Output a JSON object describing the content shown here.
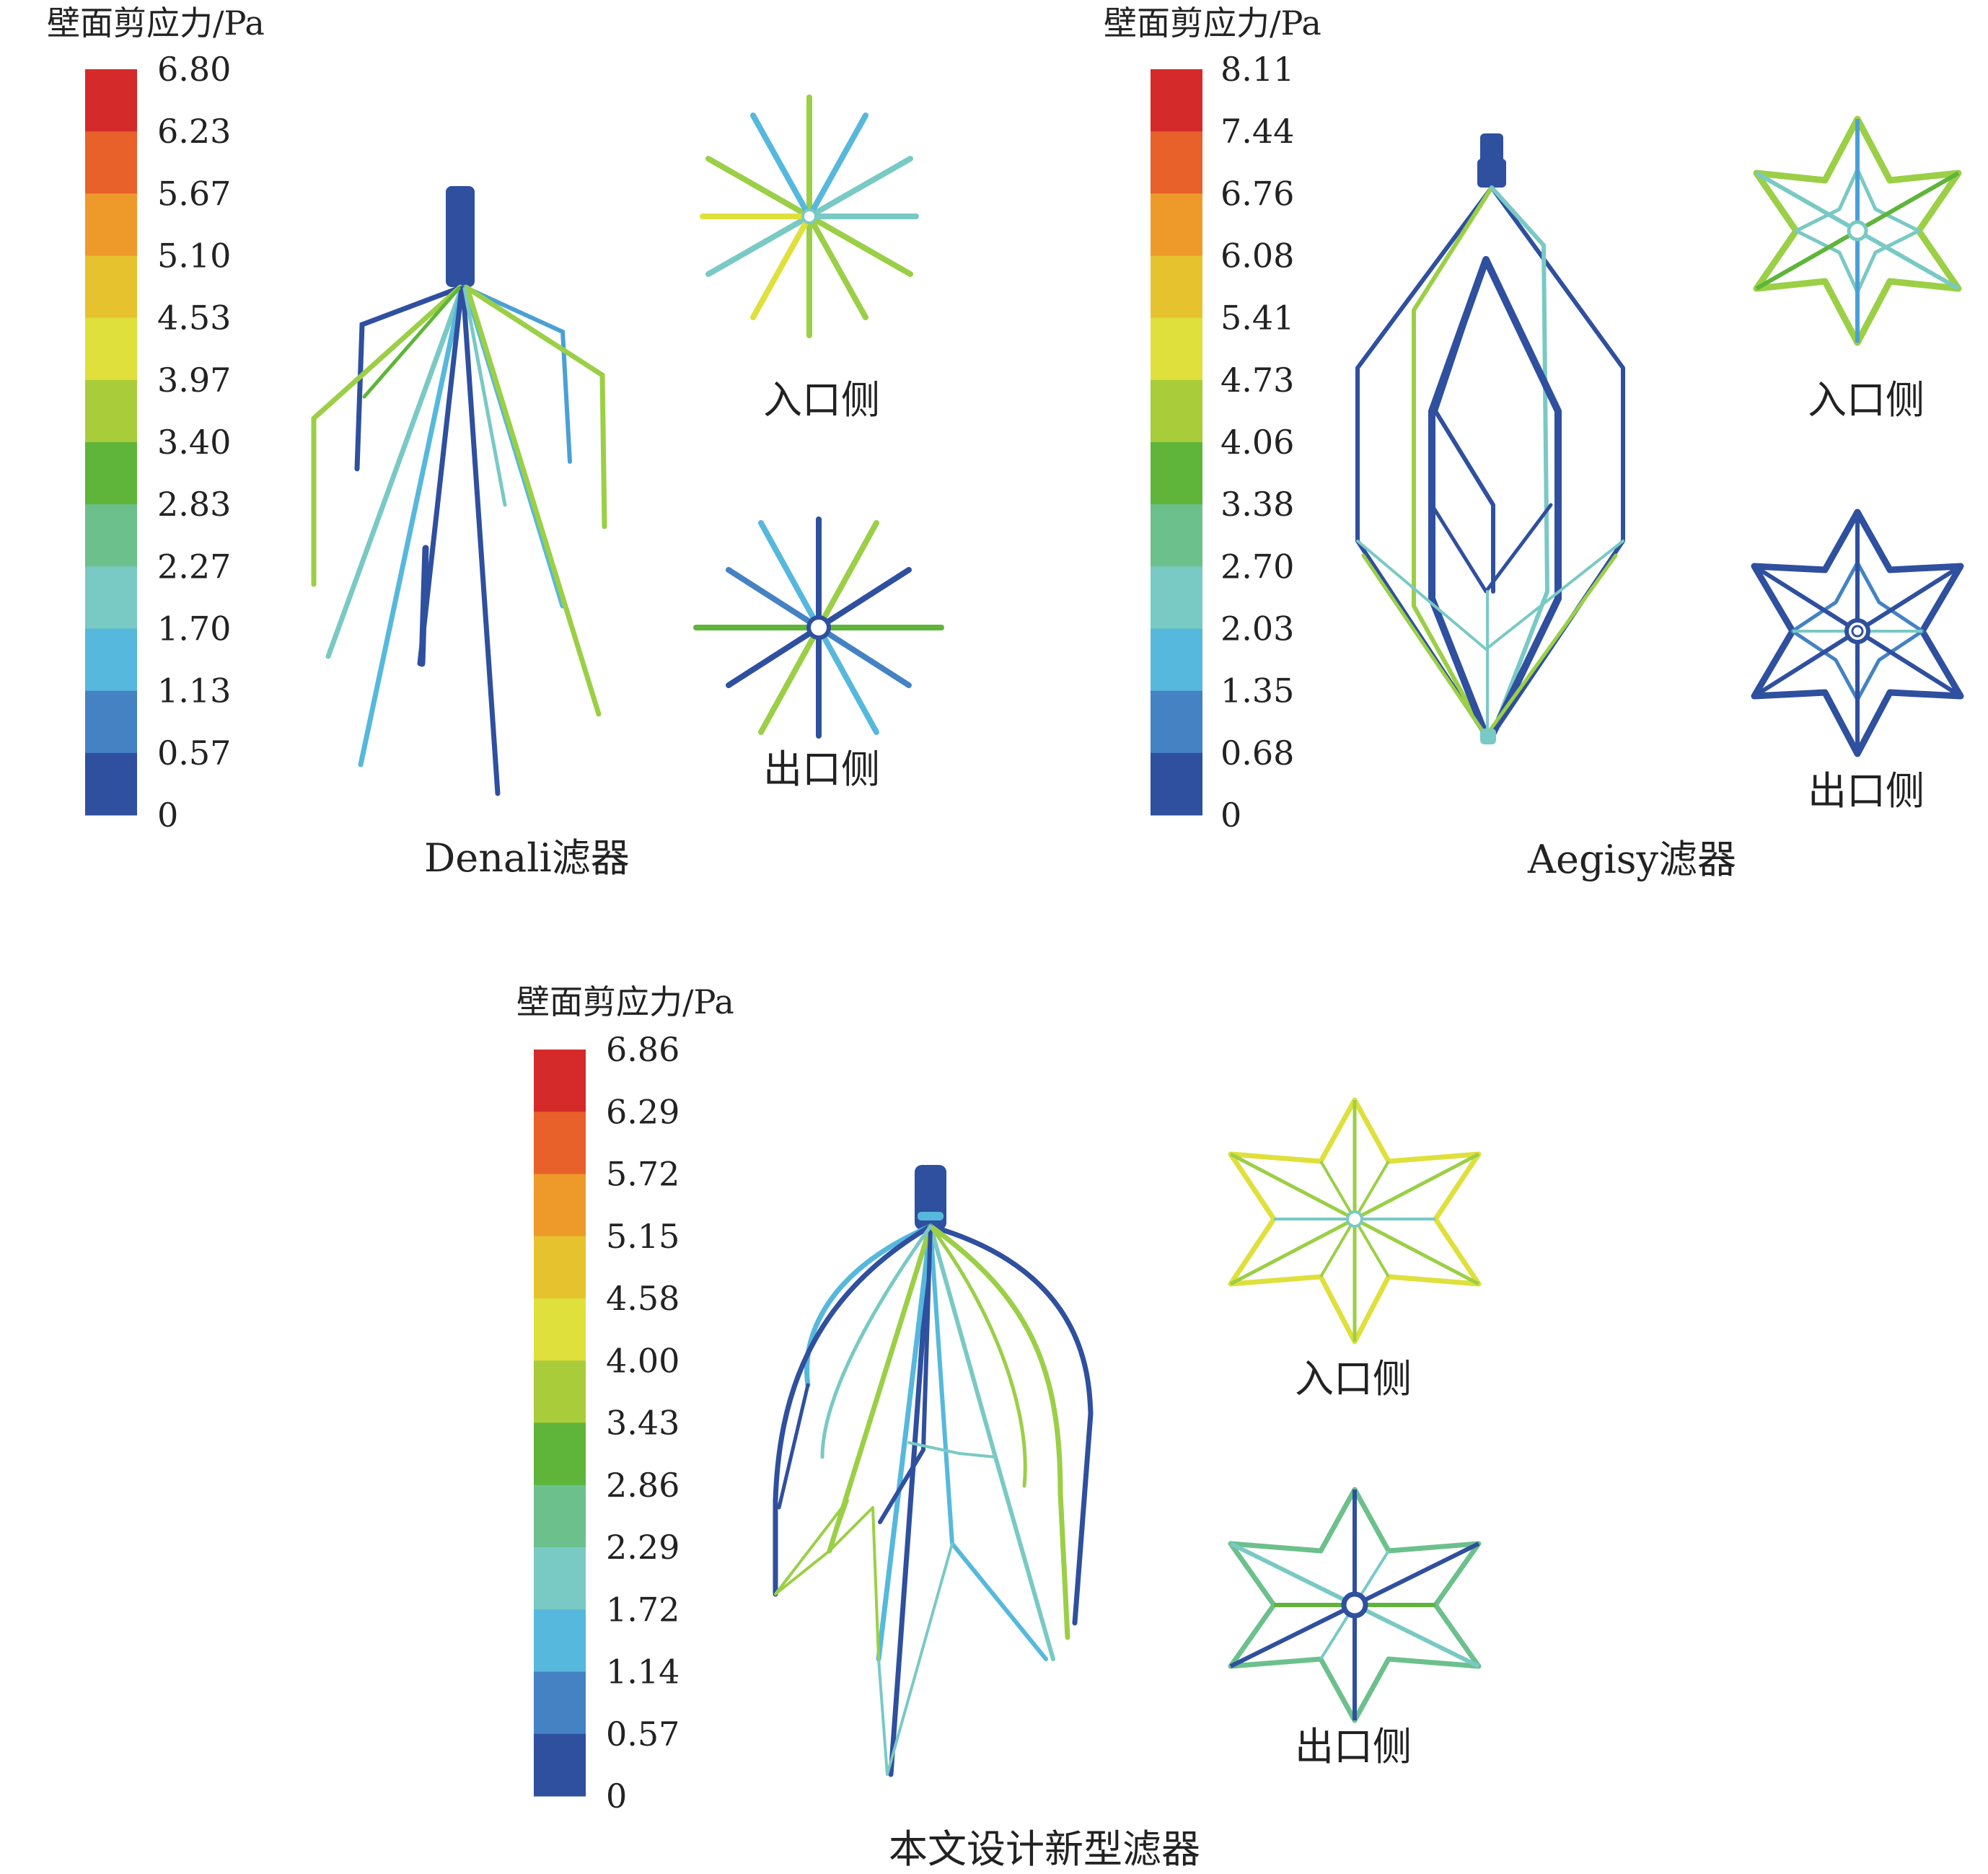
{
  "panels": [
    {
      "caption": "Denali滤器",
      "colorbar_title": "壁面剪应力/Pa",
      "ticks": [
        "6.80",
        "6.23",
        "5.67",
        "5.10",
        "4.53",
        "3.97",
        "3.40",
        "2.83",
        "2.27",
        "1.70",
        "1.13",
        "0.57",
        "0"
      ],
      "inlet_label": "入口侧",
      "outlet_label": "出口侧"
    },
    {
      "caption": "Aegisy滤器",
      "colorbar_title": "壁面剪应力/Pa",
      "ticks": [
        "8.11",
        "7.44",
        "6.76",
        "6.08",
        "5.41",
        "4.73",
        "4.06",
        "3.38",
        "2.70",
        "2.03",
        "1.35",
        "0.68",
        "0"
      ],
      "inlet_label": "入口侧",
      "outlet_label": "出口侧"
    },
    {
      "caption": "本文设计新型滤器",
      "colorbar_title": "壁面剪应力/Pa",
      "ticks": [
        "6.86",
        "6.29",
        "5.72",
        "5.15",
        "4.58",
        "4.00",
        "3.43",
        "2.86",
        "2.29",
        "1.72",
        "1.14",
        "0.57",
        "0"
      ],
      "inlet_label": "入口侧",
      "outlet_label": "出口侧"
    }
  ],
  "colorbar_colors": [
    "#d42a2a",
    "#e8602a",
    "#ed9a2a",
    "#e6c22e",
    "#dfe03c",
    "#a8cc3a",
    "#5fb53a",
    "#6cc08c",
    "#79c9c4",
    "#56b8dc",
    "#4482c4",
    "#2f4f9f"
  ]
}
